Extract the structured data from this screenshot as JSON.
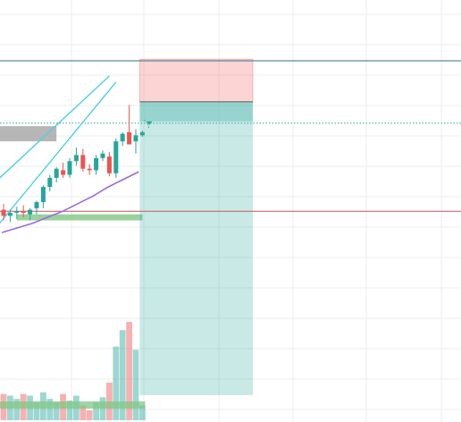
{
  "chart_data": {
    "type": "candlestick",
    "title": "",
    "xlabel": "",
    "ylabel": "",
    "grid": true,
    "legend": "none",
    "colors": {
      "up": "#26a69a",
      "down": "#ef5350",
      "background": "#ffffff",
      "grid": "#eeeeee",
      "trend_channel": "#4dd0e1",
      "moving_average": "#9c6ade",
      "horizontal_level": "#2f6f8f",
      "support_line": "#c96a6a",
      "entry_line": "#26a69a",
      "grey_zone": "#9e9e9e",
      "green_zone": "#81c784",
      "target_zone": "#26a69a",
      "stop_zone": "#ef5350"
    },
    "ylim": [
      0,
      100
    ],
    "candles": [
      {
        "o": 31.0,
        "h": 33.0,
        "l": 27.5,
        "c": 29.0
      },
      {
        "o": 29.0,
        "h": 31.0,
        "l": 27.0,
        "c": 30.0
      },
      {
        "o": 30.0,
        "h": 32.0,
        "l": 28.0,
        "c": 30.5
      },
      {
        "o": 30.5,
        "h": 32.5,
        "l": 28.5,
        "c": 30.0
      },
      {
        "o": 29.5,
        "h": 31.5,
        "l": 27.5,
        "c": 31.0
      },
      {
        "o": 31.5,
        "h": 34.0,
        "l": 29.5,
        "c": 33.5
      },
      {
        "o": 33.5,
        "h": 39.0,
        "l": 31.5,
        "c": 38.5
      },
      {
        "o": 38.5,
        "h": 42.5,
        "l": 37.0,
        "c": 41.5
      },
      {
        "o": 41.5,
        "h": 45.0,
        "l": 40.0,
        "c": 44.5
      },
      {
        "o": 44.0,
        "h": 46.5,
        "l": 41.5,
        "c": 42.5
      },
      {
        "o": 42.5,
        "h": 48.0,
        "l": 41.5,
        "c": 47.0
      },
      {
        "o": 47.0,
        "h": 51.5,
        "l": 45.5,
        "c": 49.0
      },
      {
        "o": 49.0,
        "h": 51.0,
        "l": 43.5,
        "c": 44.5
      },
      {
        "o": 44.5,
        "h": 46.0,
        "l": 42.5,
        "c": 44.0
      },
      {
        "o": 44.0,
        "h": 49.0,
        "l": 42.5,
        "c": 48.0
      },
      {
        "o": 48.0,
        "h": 50.5,
        "l": 47.0,
        "c": 49.5
      },
      {
        "o": 48.5,
        "h": 50.0,
        "l": 42.0,
        "c": 43.0
      },
      {
        "o": 43.0,
        "h": 54.5,
        "l": 41.5,
        "c": 53.5
      },
      {
        "o": 53.5,
        "h": 56.5,
        "l": 52.0,
        "c": 56.0
      },
      {
        "o": 56.5,
        "h": 65.5,
        "l": 52.5,
        "c": 52.5
      },
      {
        "o": 53.5,
        "h": 57.5,
        "l": 49.5,
        "c": 55.5
      },
      {
        "o": 55.5,
        "h": 57.0,
        "l": 55.0,
        "c": 56.5
      }
    ],
    "volume": [
      16,
      15,
      13,
      16,
      15,
      11,
      17,
      13,
      11,
      16,
      12,
      15,
      9,
      6,
      11,
      14,
      23,
      45,
      55,
      60,
      43,
      9
    ],
    "moving_average": [
      23.5,
      25.0,
      26.5,
      28.5,
      30.5,
      33.0,
      35.5,
      38.5,
      41.0,
      43.5
    ],
    "trend_channel": [
      {
        "from": [
          0,
          41
        ],
        "to": [
          16,
          75
        ]
      },
      {
        "from": [
          0,
          26
        ],
        "to": [
          17,
          73
        ]
      }
    ],
    "levels": [
      {
        "name": "top",
        "value": 80
      },
      {
        "name": "entry",
        "value": 59.5
      },
      {
        "name": "support",
        "value": 30.5
      }
    ],
    "zones": [
      {
        "name": "grey",
        "from_bar": -1,
        "to_bar": 8,
        "low": 53.5,
        "high": 58.5
      },
      {
        "name": "green",
        "from_bar": 2,
        "to_bar": 21,
        "low": 27.5,
        "high": 29.5
      },
      {
        "name": "stop",
        "from_bar": 21,
        "to_bar": 35,
        "low": 66.5,
        "high": 80.5
      },
      {
        "name": "target",
        "from_bar": 21,
        "to_bar": 35,
        "low": -30,
        "high": 66.5
      }
    ]
  }
}
